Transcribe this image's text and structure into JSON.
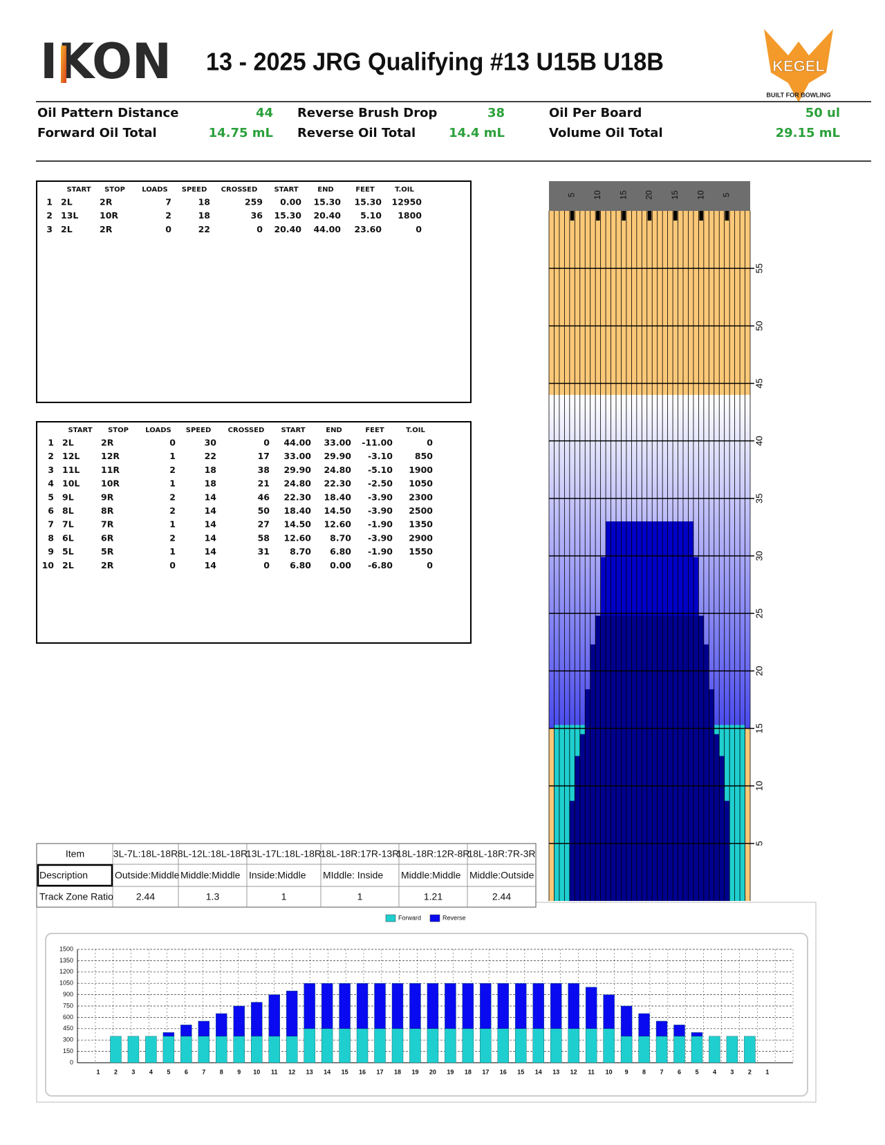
{
  "header": {
    "logo": "IKON",
    "title": "13 - 2025 JRG Qualifying #13 U15B U18B",
    "brand": "KEGEL",
    "tagline": "BUILT FOR BOWLING"
  },
  "stats": [
    {
      "label": "Oil Pattern Distance",
      "value": "44"
    },
    {
      "label": "Reverse Brush Drop",
      "value": "38"
    },
    {
      "label": "Oil Per Board",
      "value": "50 ul"
    },
    {
      "label": "Forward Oil Total",
      "value": "14.75 mL"
    },
    {
      "label": "Reverse Oil Total",
      "value": "14.4 mL"
    },
    {
      "label": "Volume Oil Total",
      "value": "29.15 mL"
    }
  ],
  "forward_table": {
    "columns": [
      "START",
      "STOP",
      "LOADS",
      "SPEED",
      "CROSSED",
      "START",
      "END",
      "FEET",
      "T.OIL"
    ],
    "rows": [
      [
        "1",
        "2L",
        "2R",
        "7",
        "18",
        "259",
        "0.00",
        "15.30",
        "15.30",
        "12950"
      ],
      [
        "2",
        "13L",
        "10R",
        "2",
        "18",
        "36",
        "15.30",
        "20.40",
        "5.10",
        "1800"
      ],
      [
        "3",
        "2L",
        "2R",
        "0",
        "22",
        "0",
        "20.40",
        "44.00",
        "23.60",
        "0"
      ]
    ]
  },
  "reverse_table": {
    "columns": [
      "START",
      "STOP",
      "LOADS",
      "SPEED",
      "CROSSED",
      "START",
      "END",
      "FEET",
      "T.OIL"
    ],
    "rows": [
      [
        "1",
        "2L",
        "2R",
        "0",
        "30",
        "0",
        "44.00",
        "33.00",
        "-11.00",
        "0"
      ],
      [
        "2",
        "12L",
        "12R",
        "1",
        "22",
        "17",
        "33.00",
        "29.90",
        "-3.10",
        "850"
      ],
      [
        "3",
        "11L",
        "11R",
        "2",
        "18",
        "38",
        "29.90",
        "24.80",
        "-5.10",
        "1900"
      ],
      [
        "4",
        "10L",
        "10R",
        "1",
        "18",
        "21",
        "24.80",
        "22.30",
        "-2.50",
        "1050"
      ],
      [
        "5",
        "9L",
        "9R",
        "2",
        "14",
        "46",
        "22.30",
        "18.40",
        "-3.90",
        "2300"
      ],
      [
        "6",
        "8L",
        "8R",
        "2",
        "14",
        "50",
        "18.40",
        "14.50",
        "-3.90",
        "2500"
      ],
      [
        "7",
        "7L",
        "7R",
        "1",
        "14",
        "27",
        "14.50",
        "12.60",
        "-1.90",
        "1350"
      ],
      [
        "8",
        "6L",
        "6R",
        "2",
        "14",
        "58",
        "12.60",
        "8.70",
        "-3.90",
        "2900"
      ],
      [
        "9",
        "5L",
        "5R",
        "1",
        "14",
        "31",
        "8.70",
        "6.80",
        "-1.90",
        "1550"
      ],
      [
        "10",
        "2L",
        "2R",
        "0",
        "14",
        "0",
        "6.80",
        "0.00",
        "-6.80",
        "0"
      ]
    ]
  },
  "track_zone": {
    "header": [
      "Item",
      "3L-7L:18L-18R",
      "8L-12L:18L-18R",
      "13L-17L:18L-18R",
      "18L-18R:17R-13R",
      "18L-18R:12R-8R",
      "18L-18R:7R-3R"
    ],
    "rows": [
      [
        "Description",
        "Outside:Middle",
        "Middle:Middle",
        "Inside:Middle",
        "MIddle: Inside",
        "Middle:Middle",
        "Middle:Outside"
      ],
      [
        "Track Zone Ratio",
        "2.44",
        "1.3",
        "1",
        "1",
        "1.21",
        "2.44"
      ]
    ]
  },
  "lane": {
    "board_labels": [
      "5",
      "10",
      "15",
      "20",
      "15",
      "10",
      "5"
    ],
    "ylim": [
      0,
      60
    ],
    "yticks": [
      5,
      10,
      15,
      20,
      25,
      30,
      35,
      40,
      45,
      50,
      55
    ]
  },
  "chart_data": {
    "type": "bar",
    "stacked": true,
    "categories": [
      "1",
      "2",
      "3",
      "4",
      "5",
      "6",
      "7",
      "8",
      "9",
      "10",
      "11",
      "12",
      "13",
      "14",
      "15",
      "16",
      "17",
      "18",
      "19",
      "20",
      "19",
      "18",
      "17",
      "16",
      "15",
      "14",
      "13",
      "12",
      "11",
      "10",
      "9",
      "8",
      "7",
      "6",
      "5",
      "4",
      "3",
      "2",
      "1"
    ],
    "series": [
      {
        "name": "Forward",
        "color": "#1fcfcf",
        "values": [
          0,
          350,
          350,
          350,
          350,
          350,
          350,
          350,
          350,
          350,
          350,
          350,
          450,
          450,
          450,
          450,
          450,
          450,
          450,
          450,
          450,
          450,
          450,
          450,
          450,
          450,
          450,
          450,
          450,
          450,
          350,
          350,
          350,
          350,
          350,
          350,
          350,
          350,
          0
        ]
      },
      {
        "name": "Reverse",
        "color": "#0a0af0",
        "values": [
          0,
          0,
          0,
          0,
          50,
          150,
          200,
          300,
          400,
          450,
          550,
          600,
          600,
          600,
          600,
          600,
          600,
          600,
          600,
          600,
          600,
          600,
          600,
          600,
          600,
          600,
          600,
          600,
          550,
          450,
          400,
          300,
          200,
          150,
          50,
          0,
          0,
          0,
          0
        ]
      }
    ],
    "ylim": [
      0,
      1500
    ],
    "yticks": [
      0,
      150,
      300,
      450,
      600,
      750,
      900,
      1050,
      1200,
      1350,
      1500
    ],
    "grid": true,
    "legend": "top"
  }
}
